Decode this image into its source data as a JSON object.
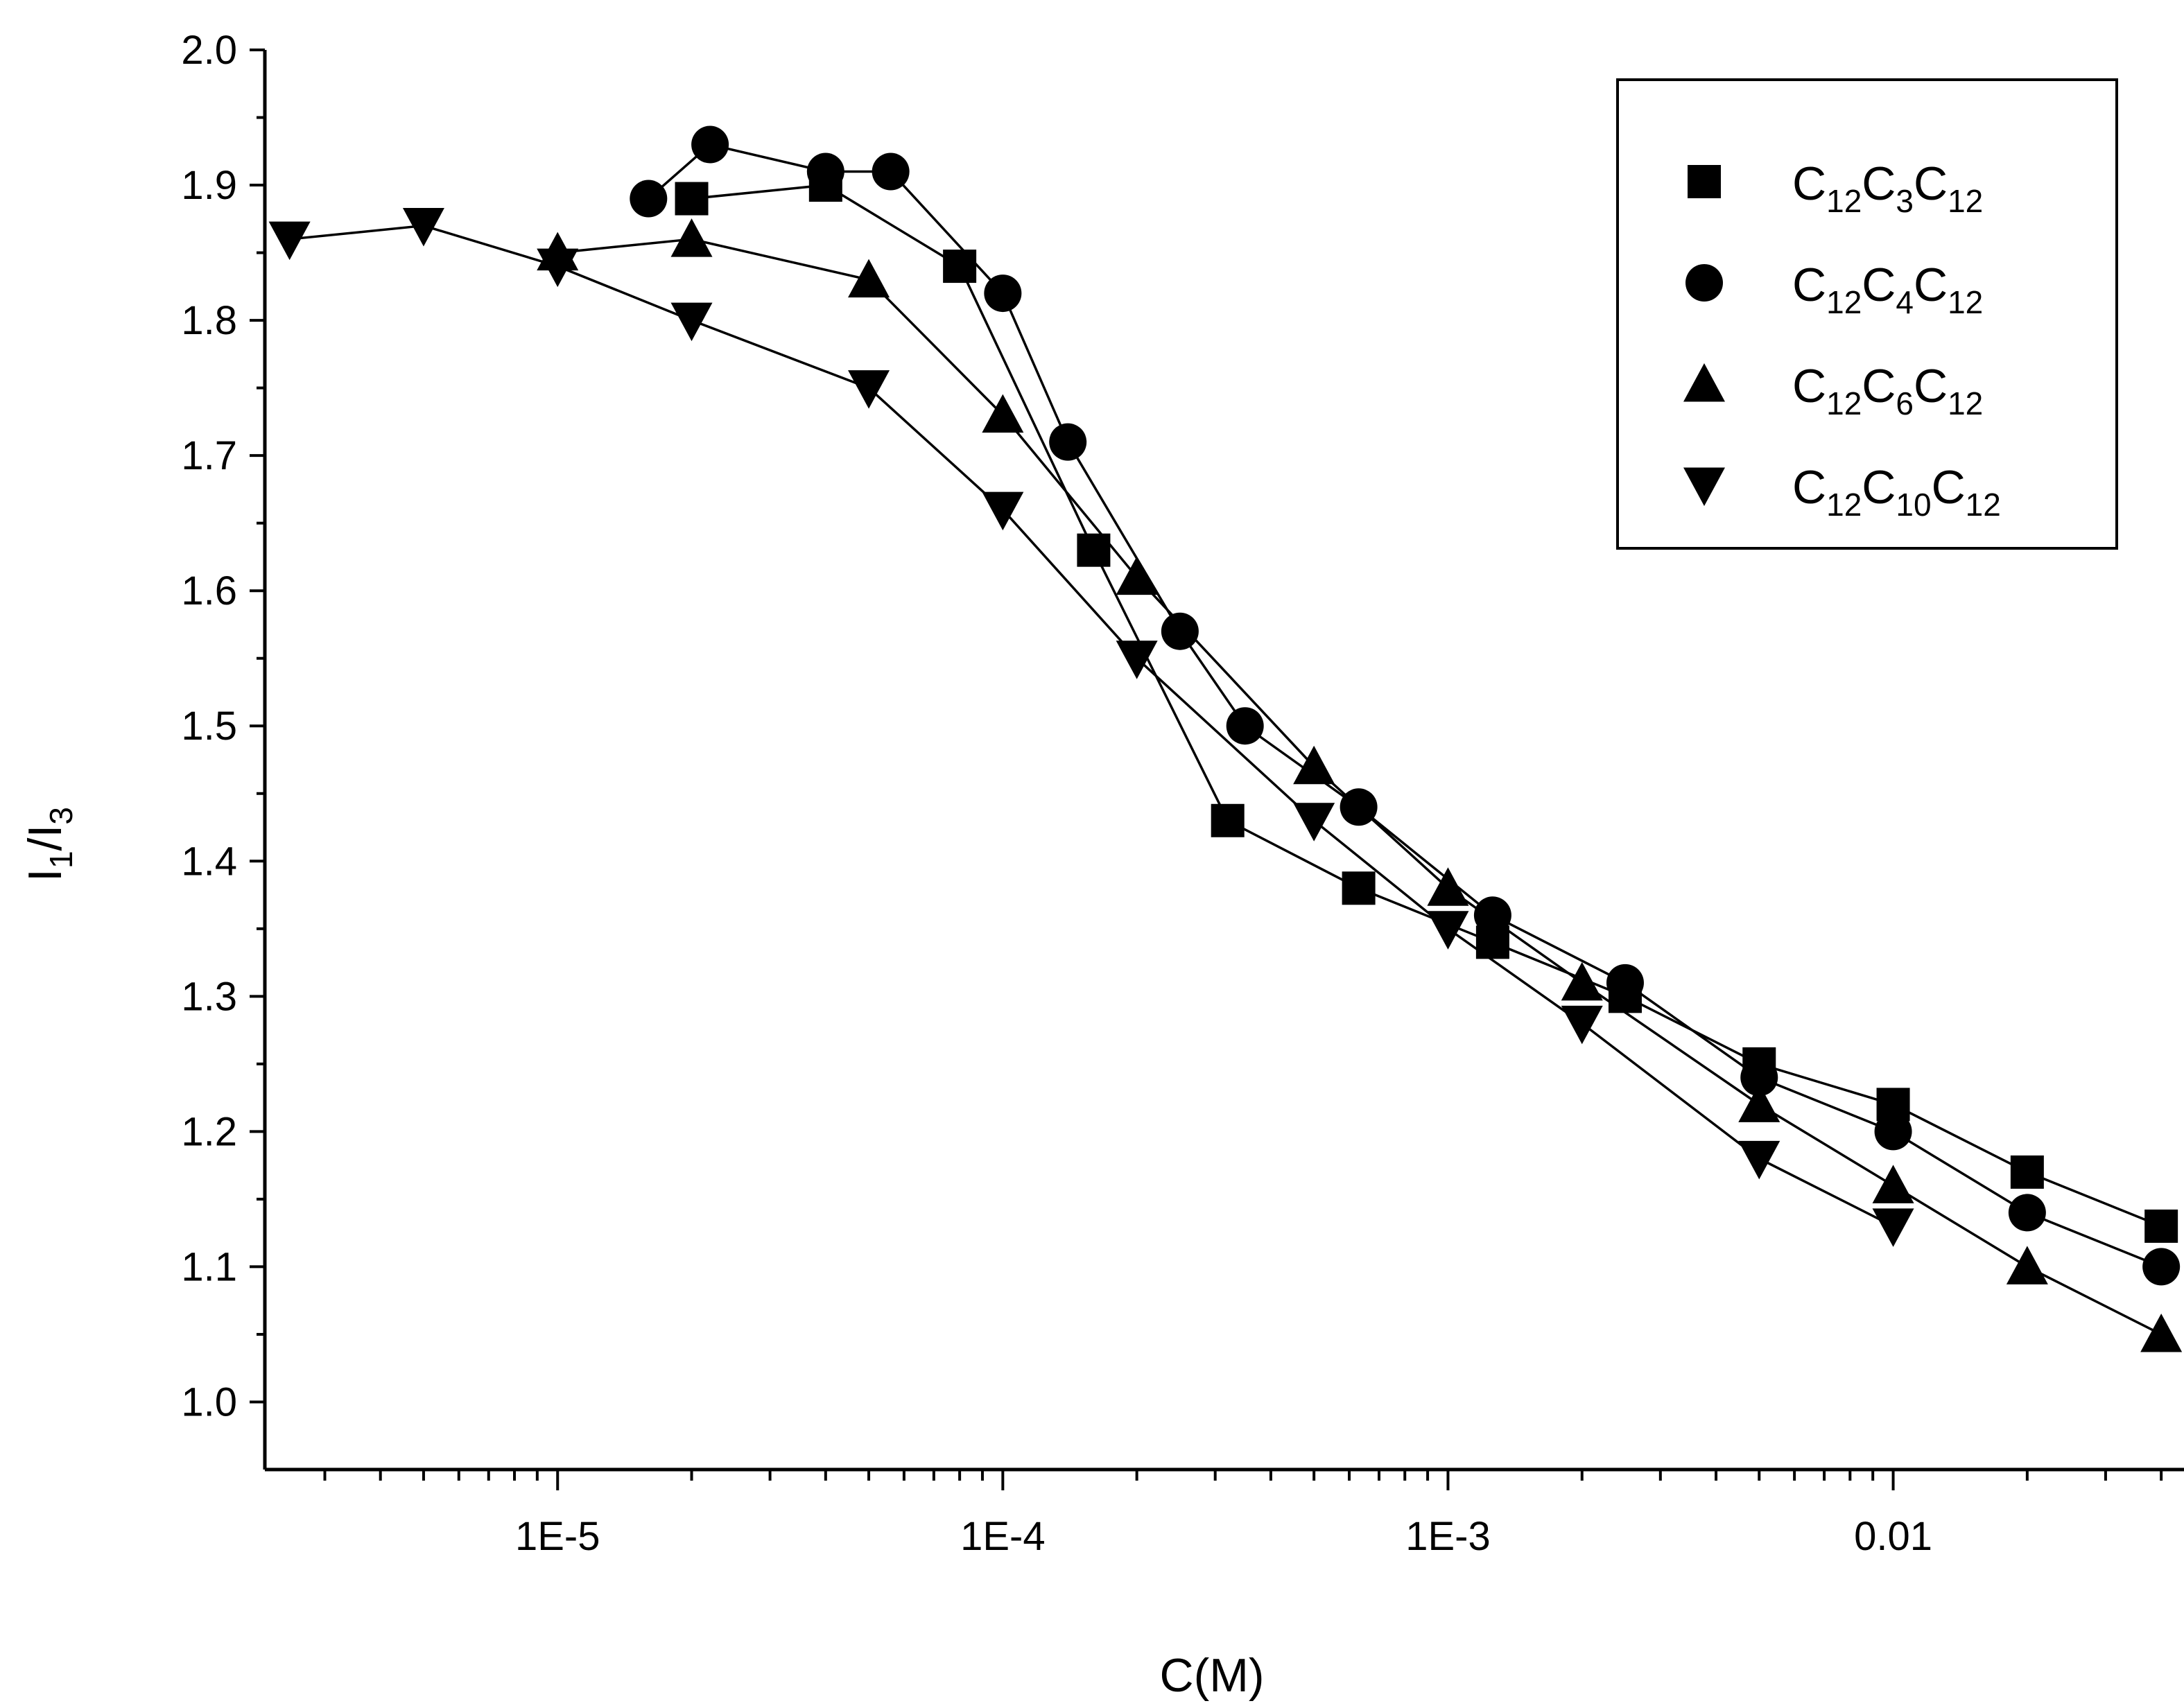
{
  "chart_data": {
    "type": "line",
    "xlabel": "C(M)",
    "ylabel": {
      "main": "I",
      "sub1": "1",
      "sep": "/I",
      "sub2": "3"
    },
    "x_scale": "log",
    "xlim": [
      2.2e-06,
      0.045
    ],
    "ylim": [
      0.95,
      2.0
    ],
    "x_ticks": [
      {
        "value": 1e-05,
        "label": "1E-5"
      },
      {
        "value": 0.0001,
        "label": "1E-4"
      },
      {
        "value": 0.001,
        "label": "1E-3"
      },
      {
        "value": 0.01,
        "label": "0.01"
      }
    ],
    "y_ticks": [
      "1.0",
      "1.1",
      "1.2",
      "1.3",
      "1.4",
      "1.5",
      "1.6",
      "1.7",
      "1.8",
      "1.9",
      "2.0"
    ],
    "legend_position": "top-right",
    "series": [
      {
        "marker": "square",
        "legend": {
          "base": "C",
          "sub1": "12",
          "mid": "C",
          "sub2": "3",
          "end": "C",
          "sub3": "12"
        },
        "x": [
          2e-05,
          4e-05,
          8e-05,
          0.00016,
          0.00032,
          0.00063,
          0.00126,
          0.0025,
          0.005,
          0.01,
          0.02,
          0.04
        ],
        "y": [
          1.89,
          1.9,
          1.84,
          1.63,
          1.43,
          1.38,
          1.34,
          1.3,
          1.25,
          1.22,
          1.17,
          1.13
        ]
      },
      {
        "marker": "circle",
        "legend": {
          "base": "C",
          "sub1": "12",
          "mid": "C",
          "sub2": "4",
          "end": "C",
          "sub3": "12"
        },
        "x": [
          1.6e-05,
          2.2e-05,
          4e-05,
          5.6e-05,
          0.0001,
          0.00014,
          0.00025,
          0.00035,
          0.00063,
          0.00126,
          0.0025,
          0.005,
          0.01,
          0.02,
          0.04
        ],
        "y": [
          1.89,
          1.93,
          1.91,
          1.91,
          1.82,
          1.71,
          1.57,
          1.5,
          1.44,
          1.36,
          1.31,
          1.24,
          1.2,
          1.14,
          1.1
        ]
      },
      {
        "marker": "triangle-up",
        "legend": {
          "base": "C",
          "sub1": "12",
          "mid": "C",
          "sub2": "6",
          "end": "C",
          "sub3": "12"
        },
        "x": [
          1e-05,
          2e-05,
          5e-05,
          0.0001,
          0.0002,
          0.0005,
          0.001,
          0.002,
          0.005,
          0.01,
          0.02,
          0.04
        ],
        "y": [
          1.85,
          1.86,
          1.83,
          1.73,
          1.61,
          1.47,
          1.38,
          1.31,
          1.22,
          1.16,
          1.1,
          1.05
        ]
      },
      {
        "marker": "triangle-down",
        "legend": {
          "base": "C",
          "sub1": "12",
          "mid": "C",
          "sub2": "10",
          "end": "C",
          "sub3": "12"
        },
        "x": [
          2.5e-06,
          5e-06,
          1e-05,
          2e-05,
          5e-05,
          0.0001,
          0.0002,
          0.0005,
          0.001,
          0.002,
          0.005,
          0.01
        ],
        "y": [
          1.86,
          1.87,
          1.84,
          1.8,
          1.75,
          1.66,
          1.55,
          1.43,
          1.35,
          1.28,
          1.18,
          1.13
        ]
      }
    ]
  }
}
